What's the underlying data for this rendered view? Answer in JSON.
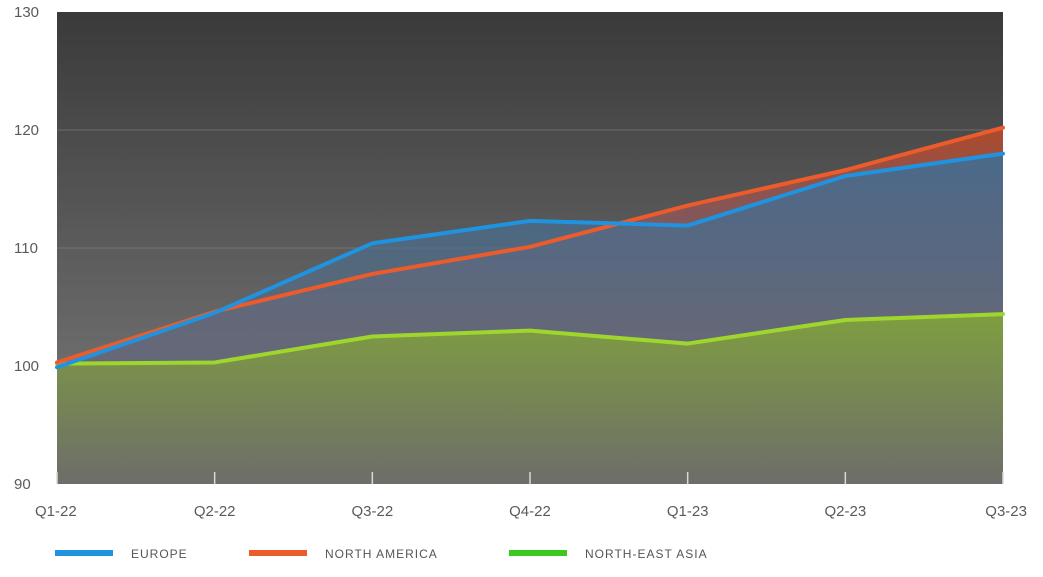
{
  "chart_data": {
    "type": "area",
    "title": "",
    "xlabel": "",
    "ylabel": "",
    "categories": [
      "Q1-22",
      "Q2-22",
      "Q3-22",
      "Q4-22",
      "Q1-23",
      "Q2-23",
      "Q3-23"
    ],
    "ylim": [
      90,
      130
    ],
    "yticks": [
      "90",
      "100",
      "110",
      "120",
      "130"
    ],
    "grid": true,
    "legend_position": "bottom",
    "series": [
      {
        "name": "NORTH AMERICA",
        "color": "#ec5b2b",
        "values": [
          100.3,
          104.6,
          107.8,
          110.1,
          113.6,
          116.6,
          120.2
        ]
      },
      {
        "name": "EUROPE",
        "color": "#1f93e0",
        "values": [
          99.9,
          104.5,
          110.4,
          112.3,
          111.9,
          116.1,
          118.0
        ]
      },
      {
        "name": "NORTH-EAST ASIA",
        "color": "#9fd62e",
        "values": [
          100.2,
          100.3,
          102.5,
          103.0,
          101.9,
          103.9,
          104.4
        ]
      }
    ],
    "legend": [
      {
        "name": "EUROPE",
        "color": "#1f93e0"
      },
      {
        "name": "NORTH AMERICA",
        "color": "#ec5b2b"
      },
      {
        "name": "NORTH-EAST ASIA",
        "color": "#3cc81e"
      }
    ]
  }
}
